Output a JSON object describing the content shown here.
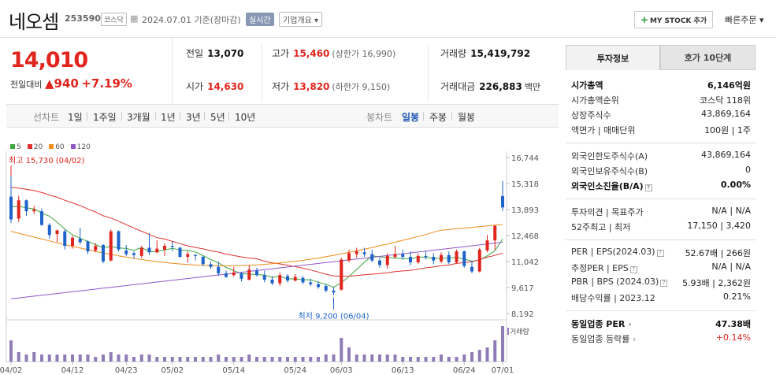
{
  "header": {
    "name": "네오셈",
    "code": "253590",
    "market": "코스닥",
    "date": "2024.07.01 기준(장마감)",
    "realtime": "실시간",
    "overview": "기업개요 ▾",
    "mystock": "MY STOCK 추가",
    "quick_order": "빠른주문 ▾"
  },
  "quote": {
    "price": "14,010",
    "diff_label": "전일대비",
    "diff": "▲940",
    "pct": "+7.19%"
  },
  "stats": {
    "prev_label": "전일",
    "prev": "13,070",
    "high_label": "고가",
    "high": "15,460",
    "upper": "(상한가 16,990)",
    "vol_label": "거래량",
    "vol": "15,419,792",
    "open_label": "시가",
    "open": "14,630",
    "low_label": "저가",
    "low": "13,820",
    "lower": "(하한가 9,150)",
    "amt_label": "거래대금",
    "amt": "226,883",
    "amt_unit": "백만"
  },
  "periods": {
    "line_label": "선차트",
    "line": [
      "1일",
      "1주일",
      "3개월",
      "1년",
      "3년",
      "5년",
      "10년"
    ],
    "candle_label": "봉차트",
    "candle": [
      "일봉",
      "주봉",
      "월봉"
    ],
    "selected": "일봉"
  },
  "legend": [
    {
      "label": "5",
      "color": "#3aa83a"
    },
    {
      "label": "20",
      "color": "#e03030"
    },
    {
      "label": "60",
      "color": "#f08c1a"
    },
    {
      "label": "120",
      "color": "#8f55c8"
    }
  ],
  "chart_data": {
    "type": "candlestick",
    "y_ticks": [
      "16,744",
      "15,318",
      "13,893",
      "12,468",
      "11,042",
      "9,617",
      "8,192"
    ],
    "ylim": [
      8192,
      16744
    ],
    "x_ticks": [
      "04/02",
      "04/12",
      "04/23",
      "05/02",
      "05/14",
      "05/24",
      "06/03",
      "06/13",
      "06/24",
      "07/01"
    ],
    "x_tick_index": [
      0,
      8,
      15,
      21,
      29,
      37,
      43,
      51,
      59,
      64
    ],
    "volume_label": "거래량",
    "high_note": "최고 15,730 (04/02)",
    "low_note": "최저 9,200 (06/04)",
    "candles": [
      [
        14600,
        15730,
        13150,
        13350
      ],
      [
        13400,
        14650,
        13200,
        14400
      ],
      [
        14400,
        14450,
        13550,
        13800
      ],
      [
        13800,
        14100,
        13650,
        13900
      ],
      [
        13800,
        13950,
        13000,
        13050
      ],
      [
        13050,
        13150,
        12300,
        12500
      ],
      [
        12550,
        12800,
        12100,
        12750
      ],
      [
        12700,
        12800,
        11700,
        11900
      ],
      [
        11900,
        12450,
        11750,
        12350
      ],
      [
        12300,
        12900,
        12000,
        12100
      ],
      [
        12150,
        12200,
        11450,
        11600
      ],
      [
        11650,
        12050,
        11550,
        11900
      ],
      [
        11950,
        12000,
        10950,
        11050
      ],
      [
        11100,
        12800,
        11050,
        12700
      ],
      [
        12700,
        12750,
        11600,
        11700
      ],
      [
        11650,
        11950,
        11350,
        11450
      ],
      [
        11500,
        11600,
        11200,
        11400
      ],
      [
        11350,
        11900,
        11250,
        11800
      ],
      [
        11800,
        12600,
        11400,
        11550
      ],
      [
        11550,
        12200,
        11500,
        11750
      ],
      [
        11700,
        12050,
        11350,
        11900
      ],
      [
        11900,
        12150,
        11600,
        11850
      ],
      [
        11800,
        11850,
        11250,
        11300
      ],
      [
        11300,
        11600,
        11000,
        11450
      ],
      [
        11400,
        11450,
        11100,
        11350
      ],
      [
        11300,
        11350,
        10800,
        10900
      ],
      [
        10900,
        11050,
        10650,
        10750
      ],
      [
        10750,
        11050,
        10250,
        10400
      ],
      [
        10400,
        10550,
        10150,
        10200
      ],
      [
        10300,
        10750,
        10200,
        10450
      ],
      [
        10400,
        10450,
        9950,
        10100
      ],
      [
        10050,
        10850,
        10000,
        10600
      ],
      [
        10550,
        10700,
        10200,
        10300
      ],
      [
        10300,
        10550,
        9900,
        10050
      ],
      [
        10050,
        10250,
        9750,
        9850
      ],
      [
        9850,
        10450,
        9700,
        10300
      ],
      [
        10250,
        10350,
        9900,
        10000
      ],
      [
        10000,
        10350,
        9950,
        10200
      ],
      [
        10150,
        10250,
        9800,
        9900
      ],
      [
        9900,
        10100,
        9700,
        9800
      ],
      [
        9800,
        9950,
        9550,
        9650
      ],
      [
        9700,
        9800,
        9350,
        9450
      ],
      [
        9450,
        9650,
        9200,
        9350
      ],
      [
        9500,
        11250,
        9450,
        11150
      ],
      [
        11100,
        11700,
        11000,
        11500
      ],
      [
        11450,
        11800,
        11250,
        11600
      ],
      [
        11550,
        11800,
        11300,
        11450
      ],
      [
        11450,
        11700,
        11000,
        11100
      ],
      [
        11100,
        11250,
        10700,
        10850
      ],
      [
        10850,
        11500,
        10650,
        11350
      ],
      [
        11300,
        11900,
        11200,
        11450
      ],
      [
        11450,
        11700,
        11150,
        11300
      ],
      [
        11300,
        11600,
        10850,
        11000
      ],
      [
        11000,
        11500,
        10900,
        11350
      ],
      [
        11350,
        11600,
        11150,
        11300
      ],
      [
        11300,
        11500,
        10900,
        11100
      ],
      [
        11050,
        11550,
        10950,
        11400
      ],
      [
        11400,
        11600,
        10900,
        11000
      ],
      [
        11000,
        11700,
        10950,
        11600
      ],
      [
        11600,
        11650,
        10700,
        10800
      ],
      [
        10750,
        11100,
        10400,
        10500
      ],
      [
        10500,
        11800,
        10450,
        11700
      ],
      [
        11650,
        12500,
        11550,
        12200
      ],
      [
        12200,
        13050,
        11700,
        13000
      ],
      [
        14630,
        15460,
        13820,
        14010
      ]
    ],
    "volumes": [
      9,
      4,
      3,
      4,
      3,
      3,
      3,
      3,
      3,
      3,
      3,
      2,
      3,
      4,
      3,
      3,
      2,
      3,
      3,
      2,
      2,
      2,
      2,
      2,
      2,
      2,
      2,
      3,
      2,
      2,
      2,
      3,
      2,
      2,
      2,
      2,
      2,
      2,
      2,
      2,
      2,
      3,
      3,
      10,
      6,
      3,
      3,
      3,
      3,
      3,
      3,
      2,
      2,
      2,
      2,
      2,
      3,
      2,
      2,
      3,
      4,
      5,
      6,
      9,
      15
    ]
  },
  "panel": {
    "tab_info": "투자정보",
    "tab_hoga": "호가 10단계",
    "market_cap_label": "시가총액",
    "market_cap": "6,146억원",
    "rank_label": "시가총액순위",
    "rank": "코스닥 118위",
    "listed_label": "상장주식수",
    "listed": "43,869,164",
    "par_label": "액면가 | 매매단위",
    "par": "100원 | 1주",
    "foreign_limit_label": "외국인한도주식수(A)",
    "foreign_limit": "43,869,164",
    "foreign_hold_label": "외국인보유주식수(B)",
    "foreign_hold": "0",
    "foreign_ratio_label": "외국인소진율(B/A)",
    "foreign_ratio": "0.00%",
    "opinion_label": "투자의견 | 목표주가",
    "opinion": "N/A | N/A",
    "w52_label": "52주최고 | 최저",
    "w52": "17,150 | 3,420",
    "per_label": "PER | EPS(2024.03)",
    "per": "52.67배 | 266원",
    "est_per_label": "추정PER | EPS",
    "est_per": "N/A | N/A",
    "pbr_label": "PBR | BPS (2024.03)",
    "pbr": "5.93배 | 2,362원",
    "div_label": "배당수익률 | 2023.12",
    "div": "0.21%",
    "ind_per_label": "동일업종 PER",
    "ind_per": "47.38배",
    "ind_rate_label": "동일업종 등락률",
    "ind_rate": "+0.14%"
  },
  "colors": {
    "up": "#e1241d",
    "down": "#1e63c9",
    "accent": "#1c55b5"
  }
}
